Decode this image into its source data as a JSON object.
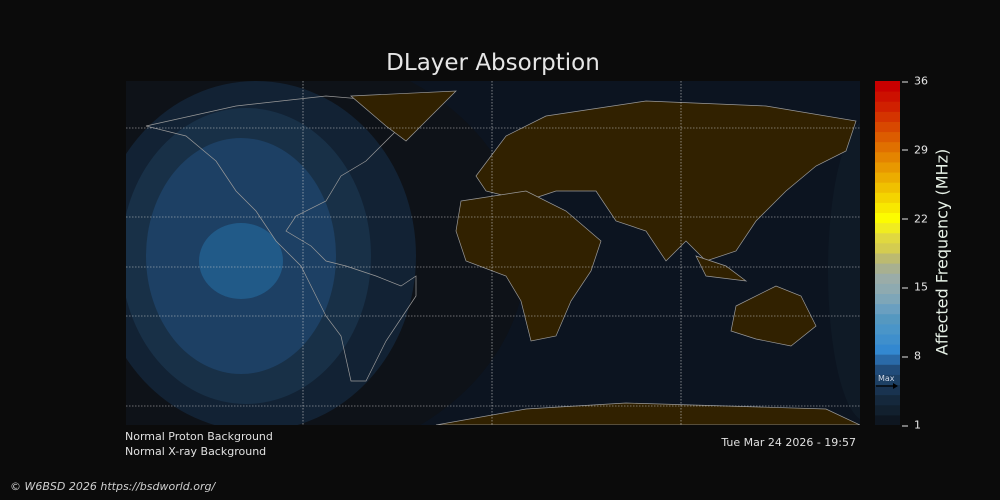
{
  "title": "DLayer Absorption",
  "colorbar": {
    "label": "Affected Frequency (MHz)",
    "ticks": [
      "36",
      "29",
      "22",
      "15",
      "8",
      "1"
    ],
    "range": [
      1,
      36
    ],
    "max_marker_label": "Max",
    "max_marker_value": 5,
    "colors": [
      "#0e1620",
      "#12202e",
      "#15283c",
      "#193350",
      "#1d4064",
      "#214c7a",
      "#2a6aa8",
      "#3388d0",
      "#3f8fcc",
      "#4a95c8",
      "#5598c0",
      "#6a9fc0",
      "#7ea6b8",
      "#8eaab0",
      "#9aaca8",
      "#a8b090",
      "#bcba70",
      "#d4cc50",
      "#e0d840",
      "#f0ec20",
      "#fcfc00",
      "#f8e800",
      "#f4d400",
      "#f0c000",
      "#ecac00",
      "#e89800",
      "#e48400",
      "#e07000",
      "#dc5c00",
      "#d84800",
      "#d43400",
      "#d02000",
      "#cc1000",
      "#c80000"
    ]
  },
  "map": {
    "background": "#0c1420",
    "land": "#312100",
    "coast": "#9a9a9a",
    "absorption_levels": [
      2,
      3,
      4,
      5,
      6
    ]
  },
  "status": {
    "proton": "Normal Proton Background",
    "xray": "Normal X-ray Background",
    "datetime": "Tue Mar 24 2026 - 19:57"
  },
  "footer": {
    "copyright": "© W6BSD 2026 https://bsdworld.org/"
  }
}
